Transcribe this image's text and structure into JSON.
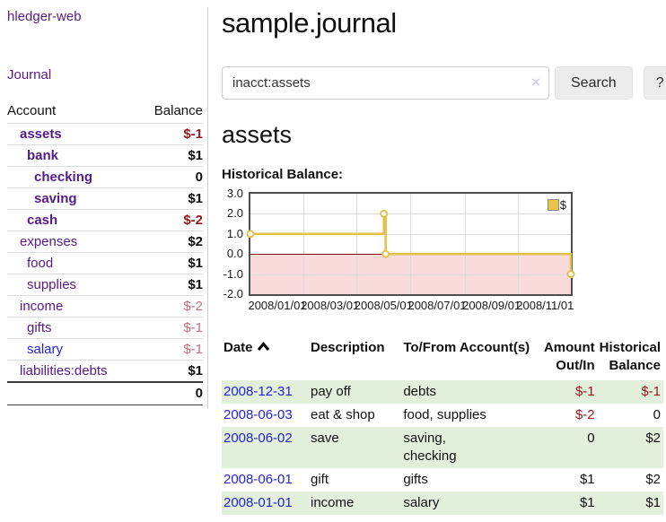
{
  "app": {
    "title": "hledger-web"
  },
  "sidebar": {
    "journal_link": "Journal",
    "accounts_table": {
      "headers": {
        "account": "Account",
        "balance": "Balance"
      },
      "rows": [
        {
          "name": "assets",
          "depth": 1,
          "bold": true,
          "balance": "$-1",
          "balance_style": "neg-strong"
        },
        {
          "name": "bank",
          "depth": 2,
          "bold": true,
          "balance": "$1",
          "balance_style": "pos"
        },
        {
          "name": "checking",
          "depth": 3,
          "bold": true,
          "balance": "0",
          "balance_style": "pos"
        },
        {
          "name": "saving",
          "depth": 3,
          "bold": true,
          "balance": "$1",
          "balance_style": "pos"
        },
        {
          "name": "cash",
          "depth": 2,
          "bold": true,
          "balance": "$-2",
          "balance_style": "neg-strong"
        },
        {
          "name": "expenses",
          "depth": 1,
          "bold": false,
          "balance": "$2",
          "balance_style": "pos"
        },
        {
          "name": "food",
          "depth": 2,
          "bold": false,
          "balance": "$1",
          "balance_style": "pos"
        },
        {
          "name": "supplies",
          "depth": 2,
          "bold": false,
          "balance": "$1",
          "balance_style": "pos"
        },
        {
          "name": "income",
          "depth": 1,
          "bold": false,
          "balance": "$-2",
          "balance_style": "neg-muted"
        },
        {
          "name": "gifts",
          "depth": 2,
          "bold": false,
          "balance": "$-1",
          "balance_style": "neg-muted"
        },
        {
          "name": "salary",
          "depth": 2,
          "bold": false,
          "balance": "$-1",
          "balance_style": "neg-muted",
          "link_blue": true
        },
        {
          "name": "liabilities:debts",
          "depth": 1,
          "bold": false,
          "balance": "$1",
          "balance_style": "pos"
        }
      ],
      "total": "0"
    }
  },
  "header": {
    "title": "sample.journal"
  },
  "search": {
    "value": "inacct:assets",
    "clear_icon": "×",
    "button_label": "Search",
    "help_label": "?"
  },
  "account_page": {
    "heading": "assets",
    "chart_label": "Historical Balance:"
  },
  "chart_data": {
    "type": "line",
    "step": true,
    "legend": "$",
    "x_range": [
      "2008-01-01",
      "2008-12-31"
    ],
    "x_tick_labels": [
      "2008/01/01",
      "2008/03/01",
      "2008/05/01",
      "2008/07/01",
      "2008/09/01",
      "2008/11/01"
    ],
    "y_tick_labels": [
      "3.0",
      "2.0",
      "1.0",
      "0.0",
      "-1.0",
      "-2.0"
    ],
    "ylim": [
      -2.0,
      3.0
    ],
    "series": [
      {
        "name": "$",
        "points": [
          {
            "x": "2008-01-01",
            "y": 1
          },
          {
            "x": "2008-06-01",
            "y": 2
          },
          {
            "x": "2008-06-03",
            "y": 0
          },
          {
            "x": "2008-12-31",
            "y": -1
          }
        ]
      }
    ],
    "colors": {
      "line": "#e3c04c",
      "marker_fill": "#ffffff",
      "negative_region": "#f9dadb",
      "zero_line": "#7e1113",
      "grid": "#dcdcdc",
      "border": "#4d4d4d"
    }
  },
  "register": {
    "columns": [
      {
        "label": "Date",
        "align": "left",
        "sortable": true,
        "css": "col-date"
      },
      {
        "label": "Description",
        "align": "left",
        "css": "col-desc"
      },
      {
        "label": "To/From Account(s)",
        "align": "left",
        "css": "col-acct"
      },
      {
        "label": "Amount Out/In",
        "align": "right",
        "css": "col-amt"
      },
      {
        "label": "Historical Balance",
        "align": "right",
        "css": "col-bal"
      }
    ],
    "rows": [
      {
        "date": "2008-12-31",
        "description": "pay off",
        "accounts": "debts",
        "amount": "$-1",
        "amount_neg": true,
        "balance": "$-1",
        "balance_neg": true
      },
      {
        "date": "2008-06-03",
        "description": "eat & shop",
        "accounts": "food, supplies",
        "amount": "$-2",
        "amount_neg": true,
        "balance": "0",
        "balance_neg": false
      },
      {
        "date": "2008-06-02",
        "description": "save",
        "accounts": "saving,\nchecking",
        "amount": "0",
        "amount_neg": false,
        "balance": "$2",
        "balance_neg": false
      },
      {
        "date": "2008-06-01",
        "description": "gift",
        "accounts": "gifts",
        "amount": "$1",
        "amount_neg": false,
        "balance": "$2",
        "balance_neg": false
      },
      {
        "date": "2008-01-01",
        "description": "income",
        "accounts": "salary",
        "amount": "$1",
        "amount_neg": false,
        "balance": "$1",
        "balance_neg": false
      }
    ]
  }
}
